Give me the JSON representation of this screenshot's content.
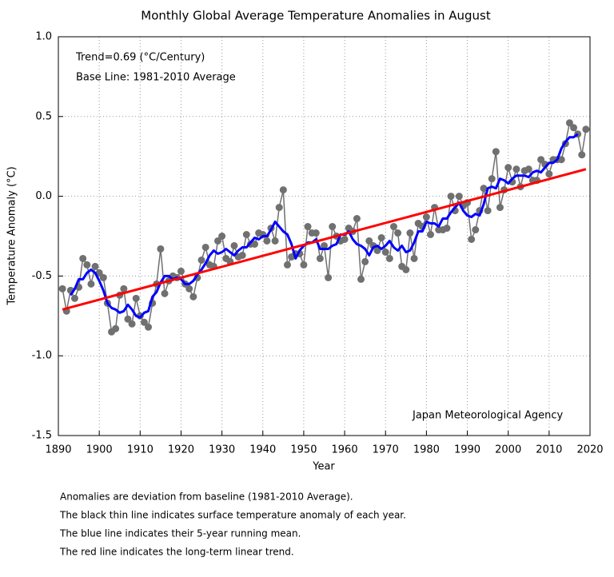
{
  "chart_data": {
    "type": "line",
    "title": "Monthly Global Average Temperature Anomalies in August",
    "x_label": "Year",
    "y_label": "Temperature Anomaly (°C)",
    "annotations": [
      "Trend=0.69 (°C/Century)",
      "Base Line: 1981-2010 Average",
      "Japan Meteorological Agency"
    ],
    "notes": [
      "Anomalies are deviation from baseline (1981-2010 Average).",
      "The black thin line indicates surface temperature anomaly of each year.",
      "The blue line indicates their 5-year running mean.",
      "The red line indicates the long-term linear trend."
    ],
    "xlim": [
      1890,
      2020
    ],
    "xticks": [
      1890,
      1900,
      1910,
      1920,
      1930,
      1940,
      1950,
      1960,
      1970,
      1980,
      1990,
      2000,
      2010,
      2020
    ],
    "ylim": [
      -1.5,
      1
    ],
    "yticks": [
      {
        "value": 1,
        "label": "1.0"
      },
      {
        "value": 0.5,
        "label": "0.5"
      },
      {
        "value": 0,
        "label": "0.0"
      },
      {
        "value": -0.5,
        "label": "-0.5"
      },
      {
        "value": -1,
        "label": "-1.0"
      },
      {
        "value": -1.5,
        "label": "-1.5"
      }
    ],
    "grid": true,
    "x": [
      1891,
      1892,
      1893,
      1894,
      1895,
      1896,
      1897,
      1898,
      1899,
      1900,
      1901,
      1902,
      1903,
      1904,
      1905,
      1906,
      1907,
      1908,
      1909,
      1910,
      1911,
      1912,
      1913,
      1914,
      1915,
      1916,
      1917,
      1918,
      1919,
      1920,
      1921,
      1922,
      1923,
      1924,
      1925,
      1926,
      1927,
      1928,
      1929,
      1930,
      1931,
      1932,
      1933,
      1934,
      1935,
      1936,
      1937,
      1938,
      1939,
      1940,
      1941,
      1942,
      1943,
      1944,
      1945,
      1946,
      1947,
      1948,
      1949,
      1950,
      1951,
      1952,
      1953,
      1954,
      1955,
      1956,
      1957,
      1958,
      1959,
      1960,
      1961,
      1962,
      1963,
      1964,
      1965,
      1966,
      1967,
      1968,
      1969,
      1970,
      1971,
      1972,
      1973,
      1974,
      1975,
      1976,
      1977,
      1978,
      1979,
      1980,
      1981,
      1982,
      1983,
      1984,
      1985,
      1986,
      1987,
      1988,
      1989,
      1990,
      1991,
      1992,
      1993,
      1994,
      1995,
      1996,
      1997,
      1998,
      1999,
      2000,
      2001,
      2002,
      2003,
      2004,
      2005,
      2006,
      2007,
      2008,
      2009,
      2010,
      2011,
      2012,
      2013,
      2014,
      2015,
      2016,
      2017,
      2018,
      2019
    ],
    "annual": {
      "color": "#707070",
      "values": [
        -0.58,
        -0.72,
        -0.59,
        -0.64,
        -0.57,
        -0.39,
        -0.43,
        -0.55,
        -0.44,
        -0.48,
        -0.51,
        -0.67,
        -0.85,
        -0.83,
        -0.62,
        -0.58,
        -0.77,
        -0.8,
        -0.64,
        -0.75,
        -0.79,
        -0.82,
        -0.67,
        -0.55,
        -0.33,
        -0.61,
        -0.53,
        -0.5,
        -0.51,
        -0.47,
        -0.55,
        -0.58,
        -0.63,
        -0.51,
        -0.4,
        -0.32,
        -0.43,
        -0.44,
        -0.28,
        -0.25,
        -0.39,
        -0.41,
        -0.31,
        -0.38,
        -0.37,
        -0.24,
        -0.3,
        -0.3,
        -0.23,
        -0.24,
        -0.28,
        -0.2,
        -0.28,
        -0.07,
        0.04,
        -0.43,
        -0.38,
        -0.36,
        -0.36,
        -0.43,
        -0.19,
        -0.23,
        -0.23,
        -0.39,
        -0.31,
        -0.51,
        -0.19,
        -0.25,
        -0.28,
        -0.27,
        -0.2,
        -0.22,
        -0.14,
        -0.52,
        -0.41,
        -0.28,
        -0.31,
        -0.34,
        -0.26,
        -0.35,
        -0.39,
        -0.19,
        -0.23,
        -0.44,
        -0.46,
        -0.23,
        -0.39,
        -0.17,
        -0.19,
        -0.13,
        -0.24,
        -0.07,
        -0.21,
        -0.21,
        -0.2,
        0,
        -0.09,
        0,
        -0.06,
        -0.04,
        -0.27,
        -0.21,
        -0.09,
        0.05,
        -0.09,
        0.11,
        0.28,
        -0.07,
        0.04,
        0.18,
        0.09,
        0.17,
        0.06,
        0.16,
        0.17,
        0.1,
        0.1,
        0.23,
        0.2,
        0.14,
        0.23,
        0.23,
        0.23,
        0.33,
        0.46,
        0.43,
        0.39,
        0.26,
        0.42
      ]
    },
    "running_mean": {
      "color": "#0000ff",
      "values": [
        null,
        null,
        -0.62,
        -0.58,
        -0.52,
        -0.52,
        -0.48,
        -0.46,
        -0.48,
        -0.53,
        -0.59,
        -0.67,
        -0.7,
        -0.71,
        -0.73,
        -0.72,
        -0.68,
        -0.71,
        -0.75,
        -0.76,
        -0.73,
        -0.72,
        -0.63,
        -0.6,
        -0.54,
        -0.5,
        -0.5,
        -0.52,
        -0.51,
        -0.52,
        -0.55,
        -0.55,
        -0.53,
        -0.49,
        -0.46,
        -0.42,
        -0.37,
        -0.34,
        -0.36,
        -0.35,
        -0.33,
        -0.35,
        -0.37,
        -0.34,
        -0.32,
        -0.32,
        -0.29,
        -0.26,
        -0.27,
        -0.25,
        -0.25,
        -0.21,
        -0.16,
        -0.19,
        -0.22,
        -0.24,
        -0.3,
        -0.39,
        -0.34,
        -0.31,
        -0.29,
        -0.29,
        -0.27,
        -0.33,
        -0.33,
        -0.33,
        -0.31,
        -0.3,
        -0.24,
        -0.24,
        -0.22,
        -0.27,
        -0.3,
        -0.31,
        -0.33,
        -0.37,
        -0.32,
        -0.31,
        -0.33,
        -0.31,
        -0.28,
        -0.32,
        -0.34,
        -0.31,
        -0.35,
        -0.34,
        -0.29,
        -0.22,
        -0.22,
        -0.16,
        -0.17,
        -0.17,
        -0.19,
        -0.14,
        -0.14,
        -0.1,
        -0.07,
        -0.04,
        -0.09,
        -0.12,
        -0.13,
        -0.11,
        -0.12,
        -0.05,
        0.05,
        0.06,
        0.05,
        0.11,
        0.1,
        0.08,
        0.11,
        0.13,
        0.13,
        0.13,
        0.12,
        0.15,
        0.16,
        0.15,
        0.18,
        0.21,
        0.21,
        0.23,
        0.3,
        0.34,
        0.37,
        0.37,
        0.39,
        null,
        null
      ]
    },
    "trend": {
      "color": "#ff0000",
      "x": [
        1891,
        2019
      ],
      "values": [
        -0.71,
        0.17
      ]
    }
  }
}
